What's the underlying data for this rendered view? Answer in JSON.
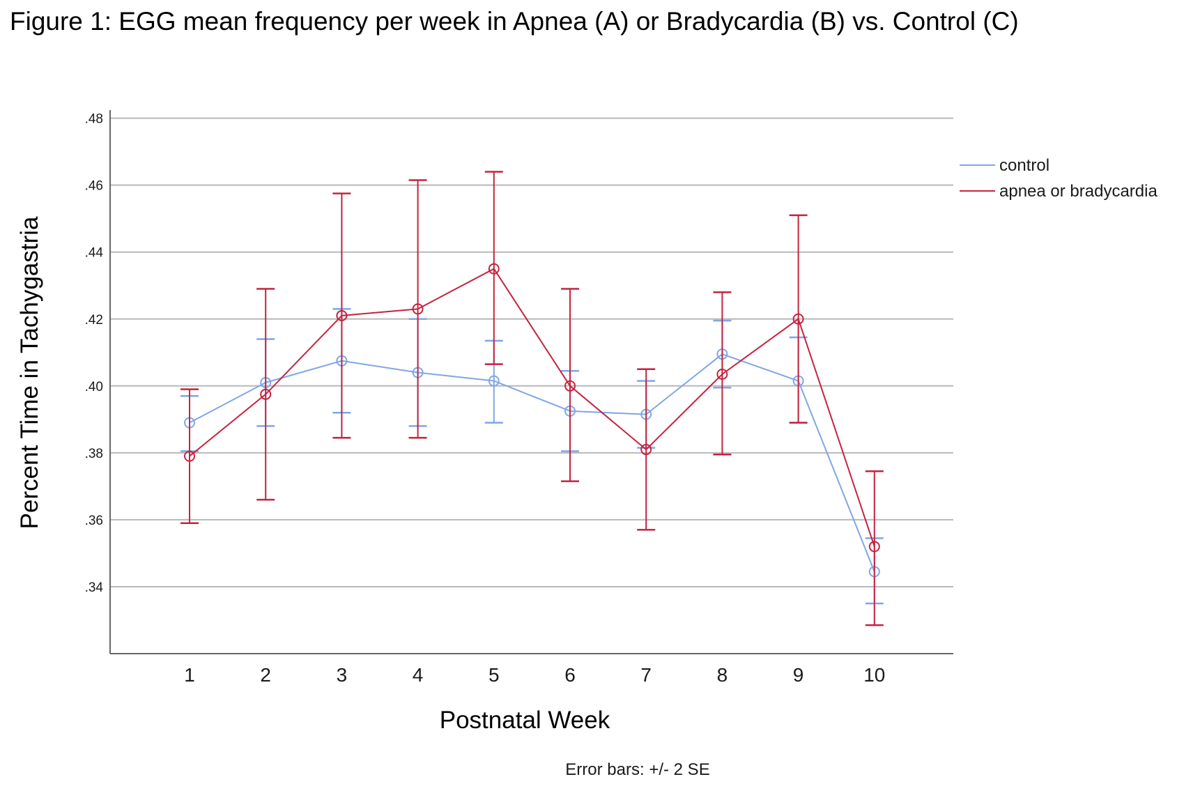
{
  "figure_title": "Figure 1: EGG mean frequency per week in Apnea (A) or Bradycardia (B) vs. Control (C)",
  "colors": {
    "control": "#7ea6e6",
    "apnea": "#c4233f",
    "grid": "#b8b8b8",
    "axis": "#666666"
  },
  "chart_data": {
    "type": "line",
    "title": "",
    "xlabel": "Postnatal Week",
    "ylabel": "Percent Time in Tachygastria",
    "x": [
      1,
      2,
      3,
      4,
      5,
      6,
      7,
      8,
      9,
      10
    ],
    "x_tick_labels": [
      "1",
      "2",
      "3",
      "4",
      "5",
      "6",
      "7",
      "8",
      "9",
      "10"
    ],
    "ylim": [
      0.32,
      0.482
    ],
    "y_ticks": [
      0.34,
      0.36,
      0.38,
      0.4,
      0.42,
      0.44,
      0.46,
      0.48
    ],
    "y_tick_labels": [
      ".34",
      ".36",
      ".38",
      ".40",
      ".42",
      ".44",
      ".46",
      ".48"
    ],
    "grid": true,
    "legend_position": "right",
    "error_bar_note": "Error bars: +/- 2 SE",
    "series": [
      {
        "name": "control",
        "color": "#7ea6e6",
        "values": [
          0.389,
          0.401,
          0.4075,
          0.404,
          0.4015,
          0.3925,
          0.3915,
          0.4095,
          0.4015,
          0.3445
        ],
        "err_low": [
          0.3805,
          0.388,
          0.392,
          0.388,
          0.389,
          0.3805,
          0.3815,
          0.3995,
          0.389,
          0.335
        ],
        "err_high": [
          0.397,
          0.414,
          0.423,
          0.42,
          0.4135,
          0.4045,
          0.4015,
          0.4195,
          0.4145,
          0.3545
        ]
      },
      {
        "name": "apnea or bradycardia",
        "color": "#c4233f",
        "values": [
          0.379,
          0.3975,
          0.421,
          0.423,
          0.435,
          0.4,
          0.381,
          0.4035,
          0.42,
          0.352
        ],
        "err_low": [
          0.359,
          0.366,
          0.3845,
          0.3845,
          0.4065,
          0.3715,
          0.357,
          0.3795,
          0.389,
          0.3285
        ],
        "err_high": [
          0.399,
          0.429,
          0.4575,
          0.4615,
          0.464,
          0.429,
          0.405,
          0.428,
          0.451,
          0.3745
        ]
      }
    ]
  }
}
